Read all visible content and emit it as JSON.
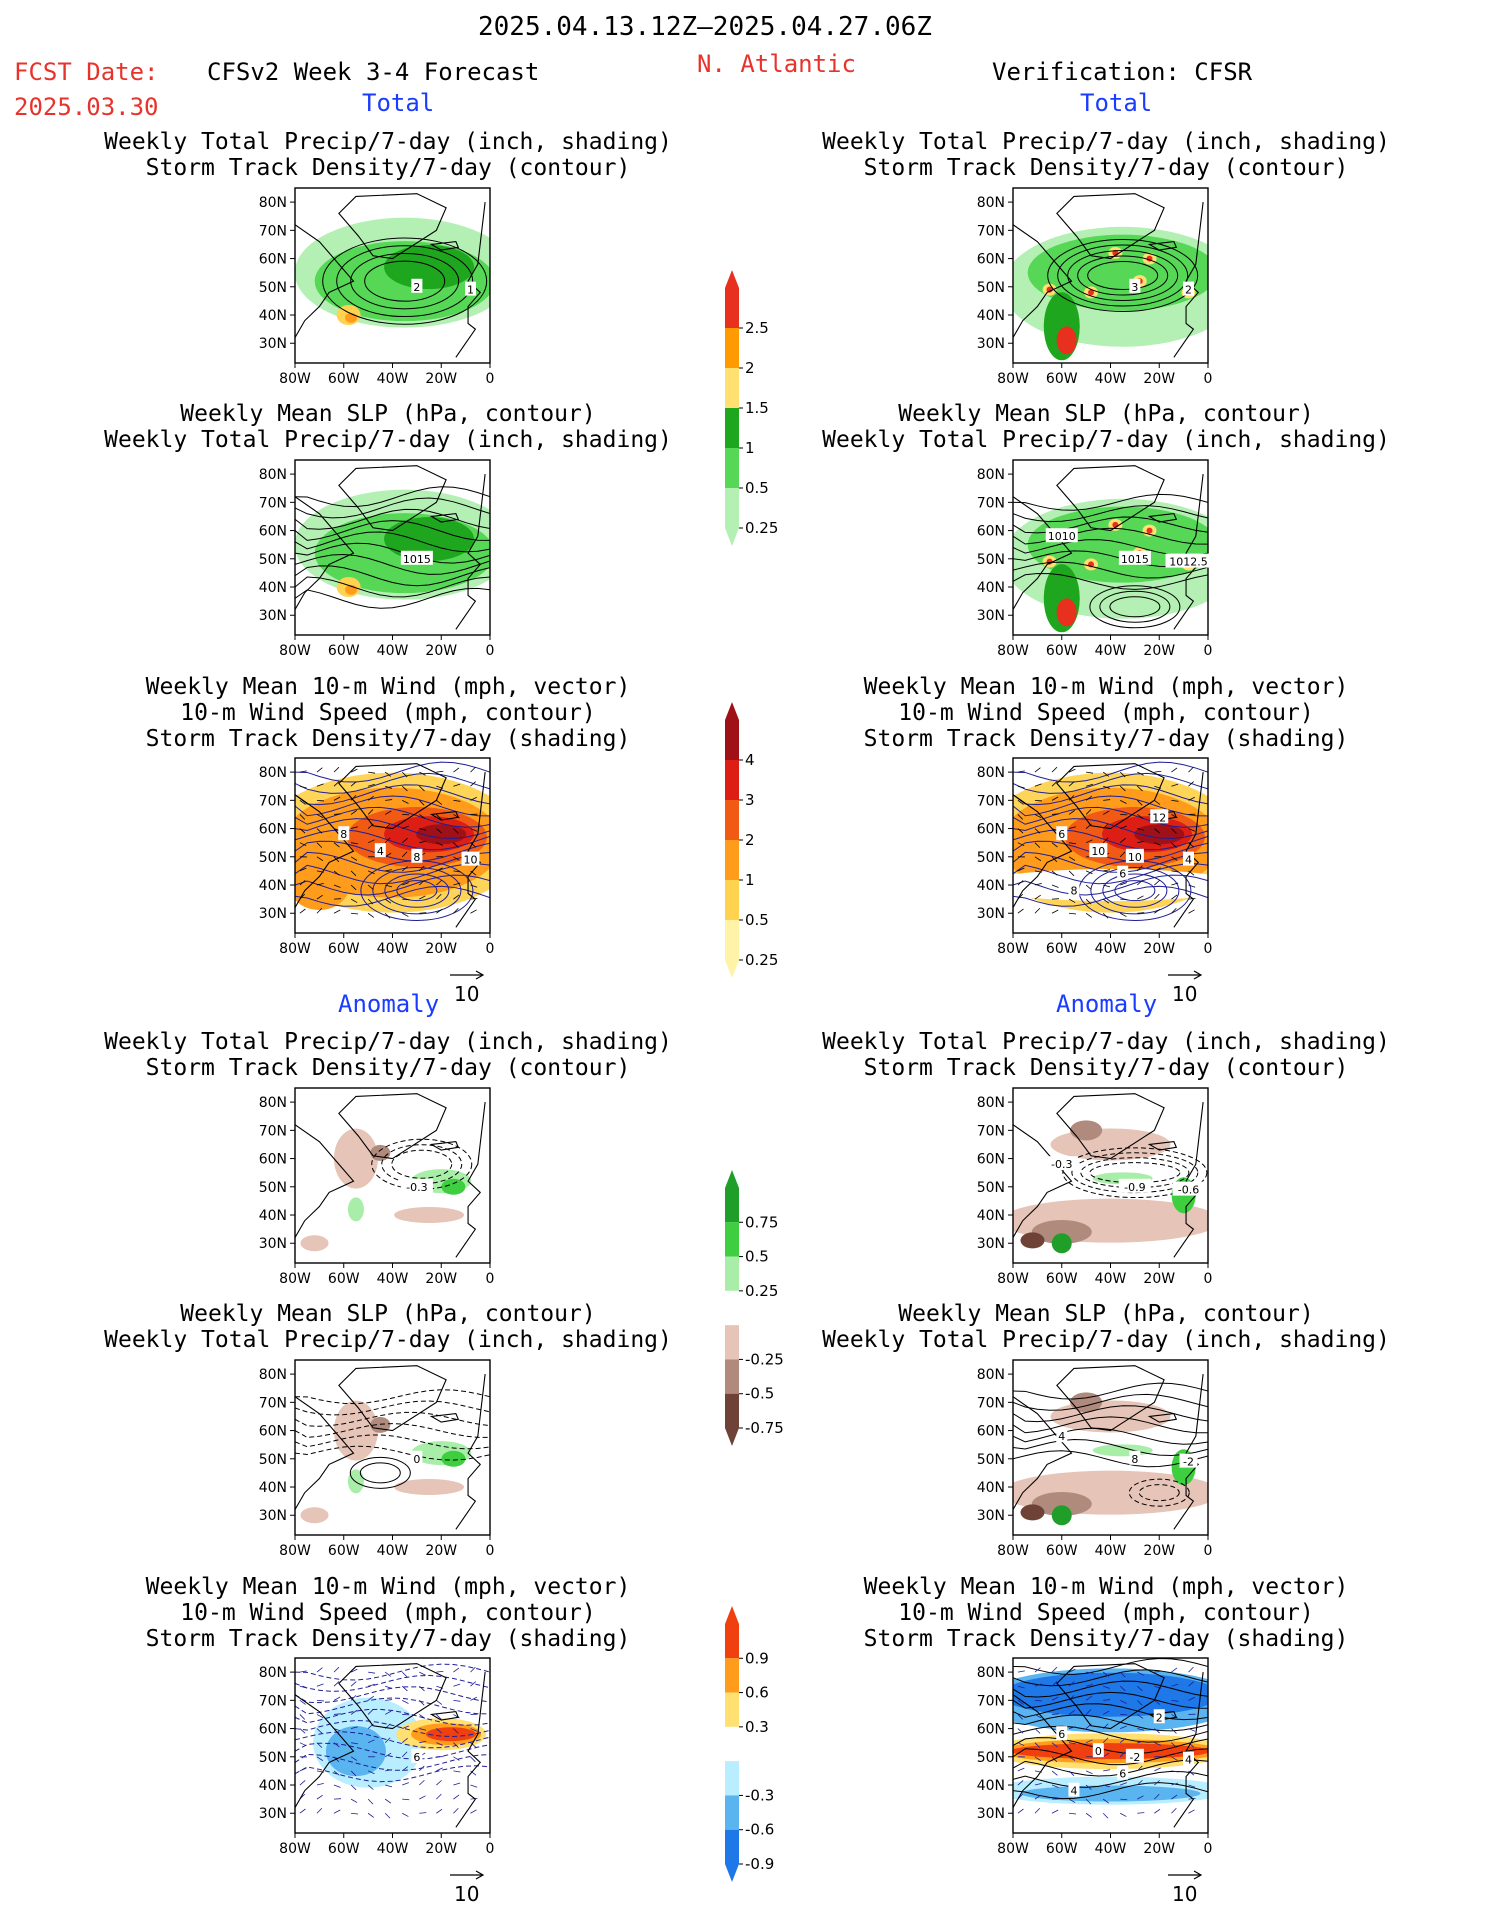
{
  "header": {
    "date_range": "2025.04.13.12Z–2025.04.27.06Z",
    "fcst_label": "FCST Date:",
    "fcst_date": "2025.03.30",
    "model_title": "CFSv2 Week 3-4 Forecast",
    "region": "N. Atlantic",
    "verification": "Verification: CFSR"
  },
  "section_labels": {
    "total": "Total",
    "anomaly": "Anomaly"
  },
  "panel_titles": {
    "precip_track": "Weekly Total Precip/7-day (inch, shading)\nStorm Track Density/7-day (contour)",
    "slp_precip": "Weekly Mean SLP (hPa, contour)\nWeekly Total Precip/7-day (inch, shading)",
    "wind_track": "Weekly Mean 10-m Wind (mph, vector)\n10-m Wind Speed (mph, contour)\nStorm Track Density/7-day (shading)"
  },
  "axes": {
    "lat_ticks": [
      "80N",
      "70N",
      "60N",
      "50N",
      "40N",
      "30N"
    ],
    "lon_ticks": [
      "80W",
      "60W",
      "40W",
      "20W",
      "0"
    ]
  },
  "vector_reference": "10",
  "contour_labels": {
    "fcst_total_precip": [
      "2",
      "1"
    ],
    "cfsr_total_precip": [
      "3",
      "2"
    ],
    "fcst_total_slp": [
      "1015"
    ],
    "cfsr_total_slp": [
      "1015",
      "1012.5",
      "1010"
    ],
    "fcst_total_wind": [
      "8",
      "10",
      "8",
      "4"
    ],
    "cfsr_total_wind": [
      "10",
      "4",
      "6",
      "10",
      "12",
      "8",
      "6"
    ],
    "fcst_anom_precip": [
      "-0.3"
    ],
    "cfsr_anom_precip": [
      "-0.9",
      "-0.6",
      "-0.3"
    ],
    "fcst_anom_slp": [
      "0"
    ],
    "cfsr_anom_slp": [
      "8",
      "-2",
      "4"
    ],
    "fcst_anom_wind": [
      "6"
    ],
    "cfsr_anom_wind": [
      "-2",
      "4",
      "6",
      "0",
      "2",
      "4",
      "6"
    ]
  },
  "colorbars": [
    {
      "labels": [
        "2.5",
        "2",
        "1.5",
        "1",
        "0.5",
        "0.25"
      ],
      "colors": [
        "#e8301e",
        "#ff9a00",
        "#ffe070",
        "#1fa61f",
        "#56d856",
        "#b4f0b4"
      ]
    },
    {
      "labels": [
        "4",
        "3",
        "2",
        "1",
        "0.5",
        "0.25"
      ],
      "colors": [
        "#a01018",
        "#dc1e14",
        "#f05a14",
        "#ff9c1c",
        "#ffd350",
        "#fff3a8"
      ]
    },
    {
      "labels": [
        "0.75",
        "0.5",
        "0.25",
        "-0.25",
        "-0.5",
        "-0.75"
      ],
      "colors": [
        "#1f9e2a",
        "#3fce3f",
        "#a8eea8",
        "#ffffff",
        "#e6c4b8",
        "#b08a7c",
        "#6e4236"
      ]
    },
    {
      "labels": [
        "0.9",
        "0.6",
        "0.3",
        "-0.3",
        "-0.6",
        "-0.9"
      ],
      "colors": [
        "#f04010",
        "#ff9c1c",
        "#ffe070",
        "#ffffff",
        "#b8eeff",
        "#5ab4f0",
        "#1e78e8"
      ]
    }
  ],
  "colors": {
    "title_red": "#e8332c",
    "label_blue": "#1a3cff"
  }
}
